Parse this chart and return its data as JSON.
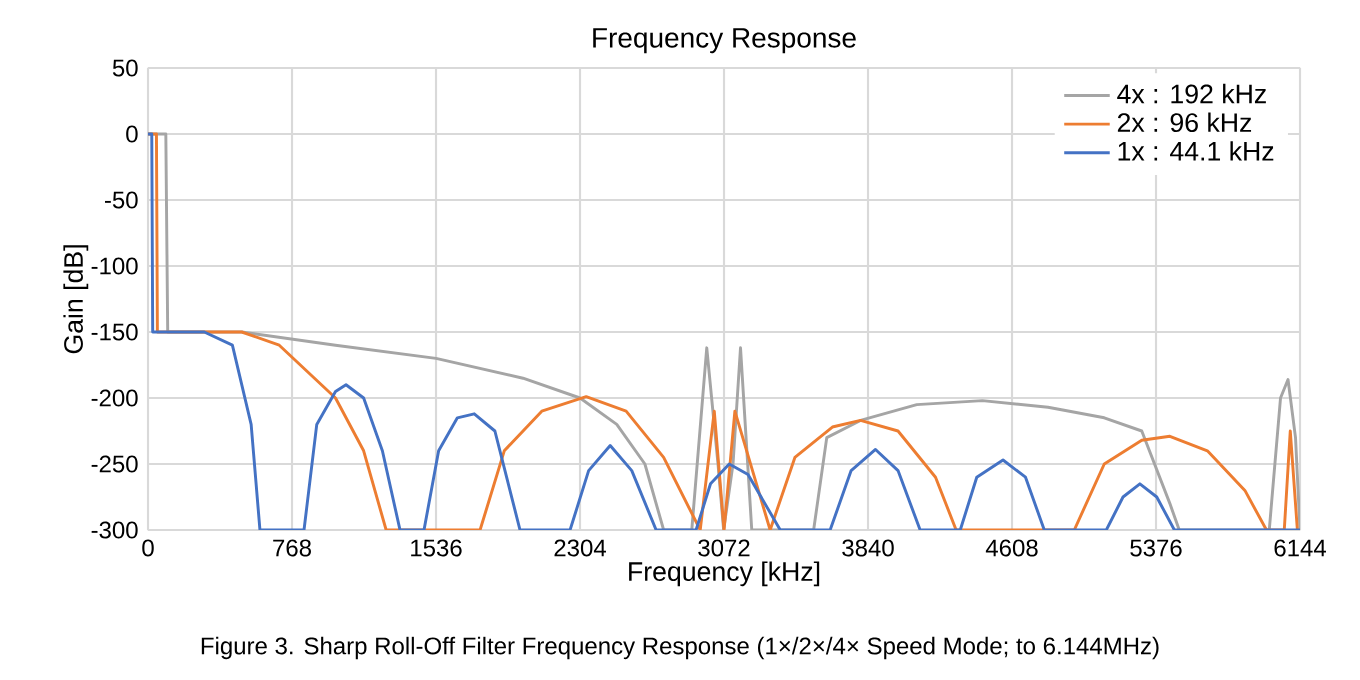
{
  "chart_data": {
    "type": "line",
    "title": "Frequency Response",
    "xlabel": "Frequency [kHz]",
    "ylabel": "Gain [dB]",
    "annotations": [
      "Figure 3. Sharp Roll-Off Filter Frequency Response (1×/2×/4× Speed Mode; to 6.144MHz)"
    ],
    "xlim": [
      0,
      6144
    ],
    "xticks": [
      0,
      768,
      1536,
      2304,
      3072,
      3840,
      4608,
      5376,
      6144
    ],
    "ylim": [
      -300,
      50
    ],
    "yticks": [
      -300,
      -250,
      -200,
      -150,
      -100,
      -50,
      0,
      50
    ],
    "grid": true,
    "legend": "top right",
    "marker": "none",
    "line_style": "solid",
    "series": [
      {
        "name": "4x : 192 kHz",
        "color": "#a5a5a5",
        "x": [
          0,
          95,
          105,
          500,
          1000,
          1536,
          2000,
          2304,
          2500,
          2650,
          2750,
          2900,
          2980,
          3040,
          3070,
          3120,
          3160,
          3220,
          3300,
          3550,
          3620,
          3800,
          4100,
          4450,
          4800,
          5100,
          5300,
          5450,
          5500,
          5980,
          6040,
          6080,
          6120,
          6144
        ],
        "values": [
          0,
          0,
          -150,
          -150,
          -160,
          -170,
          -185,
          -200,
          -220,
          -250,
          -300,
          -300,
          -162,
          -250,
          -300,
          -250,
          -162,
          -300,
          -300,
          -300,
          -230,
          -217,
          -205,
          -202,
          -207,
          -215,
          -225,
          -280,
          -300,
          -300,
          -200,
          -186,
          -230,
          -300
        ]
      },
      {
        "name": "2x : 96 kHz",
        "color": "#ed7d31",
        "x": [
          0,
          45,
          50,
          500,
          700,
          850,
          1000,
          1150,
          1270,
          1771,
          1900,
          2100,
          2337,
          2550,
          2750,
          2945,
          3020,
          3072,
          3130,
          3318,
          3450,
          3650,
          3800,
          4000,
          4200,
          4310,
          4940,
          5100,
          5300,
          5450,
          5650,
          5850,
          5965,
          6060,
          6092,
          6130
        ],
        "values": [
          0,
          0,
          -150,
          -150,
          -160,
          -180,
          -200,
          -240,
          -300,
          -300,
          -240,
          -210,
          -199,
          -210,
          -245,
          -300,
          -210,
          -300,
          -210,
          -300,
          -245,
          -222,
          -217,
          -225,
          -260,
          -300,
          -300,
          -250,
          -232,
          -229,
          -240,
          -270,
          -300,
          -300,
          -225,
          -300
        ]
      },
      {
        "name": "1x : 44.1 kHz",
        "color": "#4472c4",
        "x": [
          0,
          20,
          25,
          300,
          450,
          550,
          597,
          832,
          900,
          1000,
          1056,
          1150,
          1250,
          1344,
          1472,
          1550,
          1650,
          1740,
          1850,
          1984,
          2251,
          2350,
          2465,
          2580,
          2710,
          2923,
          3000,
          3100,
          3200,
          3372,
          3638,
          3750,
          3880,
          4000,
          4118,
          4332,
          4420,
          4560,
          4680,
          4780,
          5111,
          5200,
          5290,
          5380,
          5474,
          6144
        ],
        "values": [
          0,
          0,
          -150,
          -150,
          -160,
          -220,
          -300,
          -300,
          -220,
          -195,
          -190,
          -200,
          -240,
          -300,
          -300,
          -240,
          -215,
          -212,
          -225,
          -300,
          -300,
          -255,
          -236,
          -255,
          -300,
          -300,
          -265,
          -250,
          -258,
          -300,
          -300,
          -255,
          -239,
          -255,
          -300,
          -300,
          -260,
          -247,
          -260,
          -300,
          -300,
          -275,
          -265,
          -275,
          -300,
          -300
        ]
      }
    ]
  }
}
